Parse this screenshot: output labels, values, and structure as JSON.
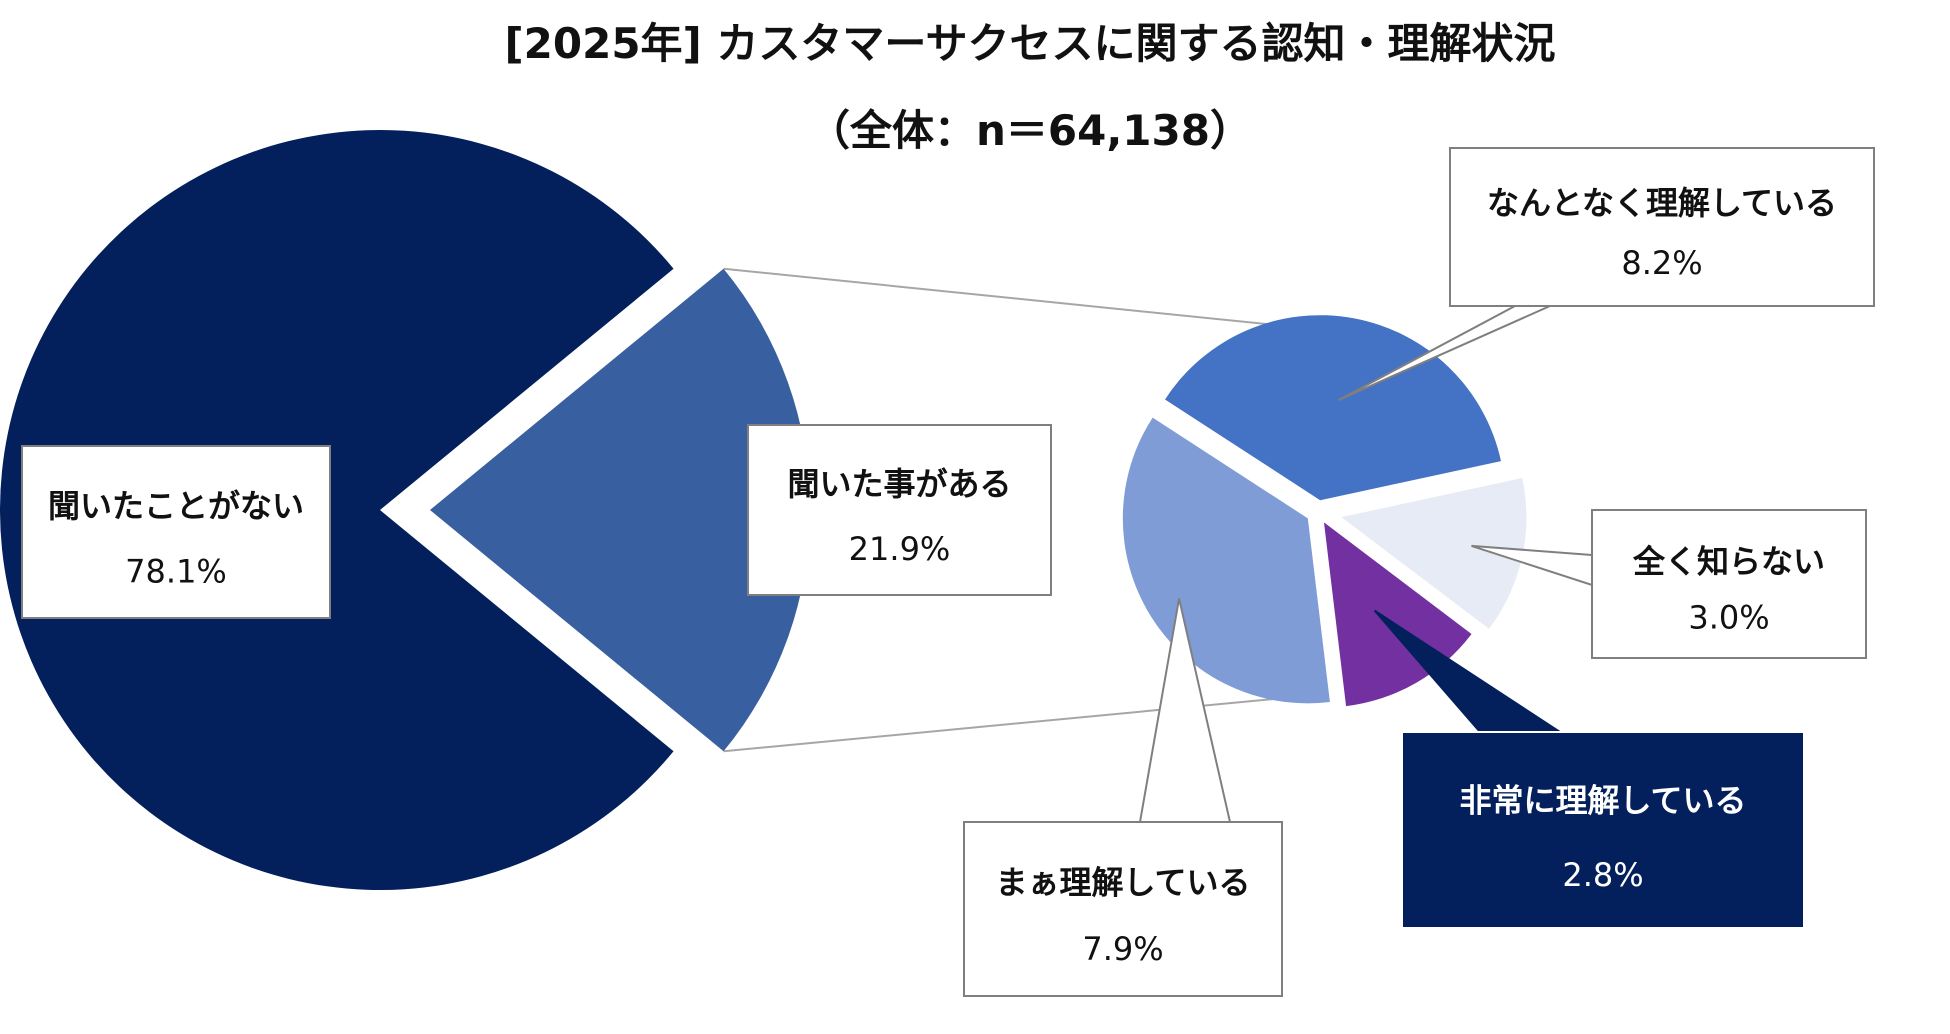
{
  "chart_data": {
    "type": "pie",
    "title": "[2025年] カスタマーサクセスに関する認知・理解状況",
    "subtitle": "（全体：n＝64,138）",
    "main_pie": {
      "slices": [
        {
          "label": "聞いたことがない",
          "value": 78.1,
          "display": "78.1%",
          "color": "#03205c"
        },
        {
          "label": "聞いた事がある",
          "value": 21.9,
          "display": "21.9%",
          "color": "#385f9f"
        }
      ]
    },
    "detail_pie": {
      "slices": [
        {
          "label": "なんとなく理解している",
          "value": 8.2,
          "display": "8.2%",
          "color": "#4472c4"
        },
        {
          "label": "全く知らない",
          "value": 3.0,
          "display": "3.0%",
          "color": "#e7ebf5"
        },
        {
          "label": "非常に理解している",
          "value": 2.8,
          "display": "2.8%",
          "color": "#7230a0"
        },
        {
          "label": "まぁ理解している",
          "value": 7.9,
          "display": "7.9%",
          "color": "#7f9cd6"
        }
      ]
    },
    "connector_color": "#a6a6a6",
    "highlight_callout_color": "#03205c"
  }
}
